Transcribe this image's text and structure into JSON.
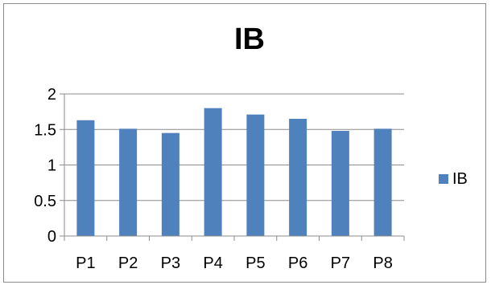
{
  "chart_data": {
    "type": "bar",
    "title": "IB",
    "categories": [
      "P1",
      "P2",
      "P3",
      "P4",
      "P5",
      "P6",
      "P7",
      "P8"
    ],
    "series": [
      {
        "name": "IB",
        "values": [
          1.63,
          1.51,
          1.45,
          1.8,
          1.71,
          1.65,
          1.48,
          1.51
        ]
      }
    ],
    "yticks": [
      "0",
      "0.5",
      "1",
      "1.5",
      "2"
    ],
    "ylim": [
      0,
      2
    ],
    "grid": true,
    "legend": "right",
    "colors": {
      "bar": "#4f81bd",
      "grid": "#8c8c8c",
      "axis": "#8c8c8c",
      "text": "#000000"
    }
  }
}
